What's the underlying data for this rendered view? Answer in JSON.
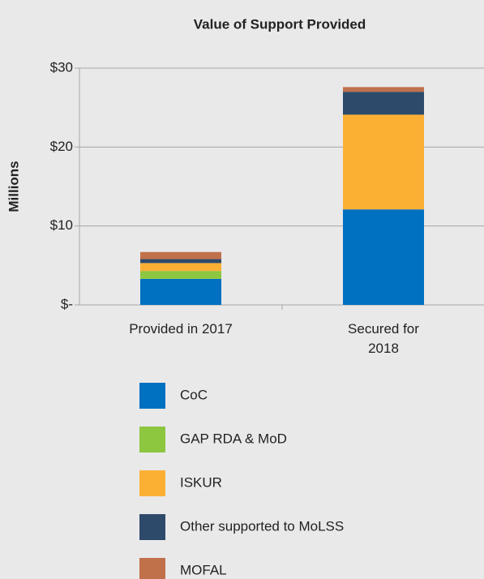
{
  "chart_data": {
    "type": "stacked_bar",
    "title": "Value of Support Provided",
    "y_label": "Millions",
    "categories": [
      "Provided in 2017",
      "Secured for 2018"
    ],
    "series": [
      {
        "name": "CoC",
        "color": "#0070c0",
        "values": [
          3.3,
          12.1
        ]
      },
      {
        "name": "GAP RDA & MoD",
        "color": "#8dc63f",
        "values": [
          1.0,
          0
        ]
      },
      {
        "name": "ISKUR",
        "color": "#fbb034",
        "values": [
          1.0,
          12.0
        ]
      },
      {
        "name": "Other supported to MoLSS",
        "color": "#2e4a6b",
        "values": [
          0.5,
          2.9
        ]
      },
      {
        "name": "MOFAL",
        "color": "#c0714a",
        "values": [
          0.9,
          0.6
        ]
      }
    ],
    "ylim": [
      0,
      30
    ],
    "yticks": [
      {
        "value": 0,
        "label": "$-"
      },
      {
        "value": 10,
        "label": "$10"
      },
      {
        "value": 20,
        "label": "$20"
      },
      {
        "value": 30,
        "label": "$30"
      }
    ],
    "grid": true
  }
}
